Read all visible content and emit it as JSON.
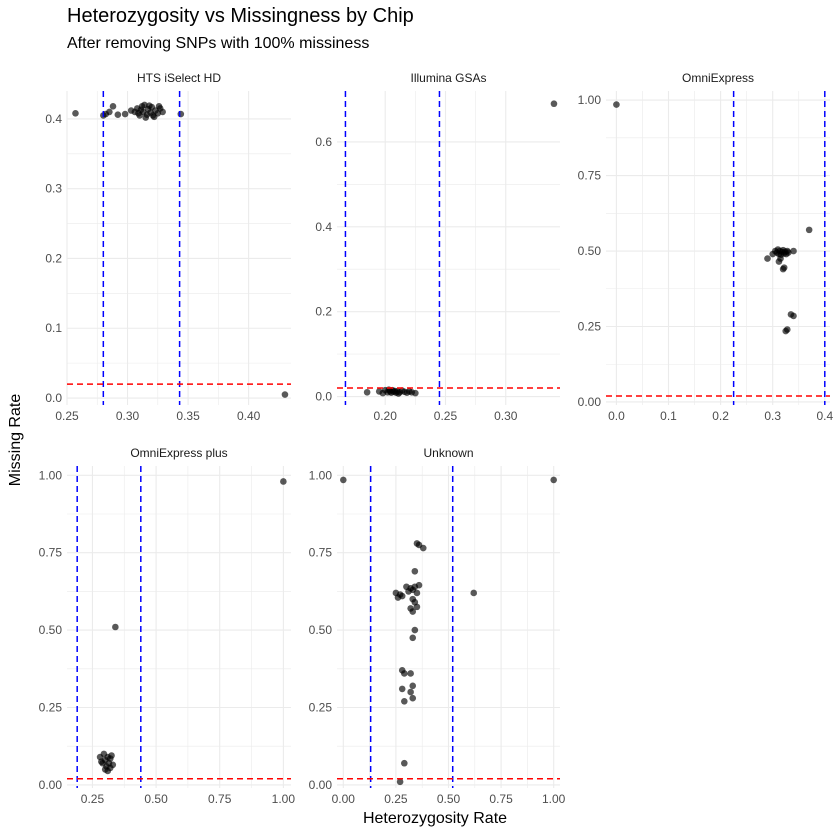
{
  "title": "Heterozygosity vs Missingness by Chip",
  "subtitle": "After removing SNPs with 100% missiness",
  "xlabel": "Heterozygosity Rate",
  "ylabel": "Missing Rate",
  "colors": {
    "point": "#000000",
    "vline": "#0000ff",
    "hline": "#ff0000",
    "grid": "#ebebeb"
  },
  "chart_data": [
    {
      "type": "scatter",
      "title": "HTS iSelect HD",
      "xlim": [
        0.25,
        0.435
      ],
      "ylim": [
        -0.01,
        0.44
      ],
      "xticks": [
        0.25,
        0.3,
        0.35,
        0.4
      ],
      "xtick_labels": [
        "0.25",
        "0.30",
        "0.35",
        "0.40"
      ],
      "yticks": [
        0.0,
        0.1,
        0.2,
        0.3,
        0.4
      ],
      "ytick_labels": [
        "0.0",
        "0.1",
        "0.2",
        "0.3",
        "0.4"
      ],
      "vlines": [
        0.28,
        0.343
      ],
      "hline": 0.02,
      "points": [
        [
          0.257,
          0.408
        ],
        [
          0.28,
          0.405
        ],
        [
          0.282,
          0.407
        ],
        [
          0.285,
          0.41
        ],
        [
          0.288,
          0.418
        ],
        [
          0.292,
          0.406
        ],
        [
          0.298,
          0.407
        ],
        [
          0.303,
          0.412
        ],
        [
          0.306,
          0.41
        ],
        [
          0.308,
          0.415
        ],
        [
          0.31,
          0.405
        ],
        [
          0.312,
          0.418
        ],
        [
          0.313,
          0.41
        ],
        [
          0.314,
          0.42
        ],
        [
          0.316,
          0.406
        ],
        [
          0.317,
          0.414
        ],
        [
          0.319,
          0.409
        ],
        [
          0.32,
          0.417
        ],
        [
          0.321,
          0.405
        ],
        [
          0.323,
          0.412
        ],
        [
          0.325,
          0.408
        ],
        [
          0.327,
          0.415
        ],
        [
          0.329,
          0.41
        ],
        [
          0.315,
          0.402
        ],
        [
          0.318,
          0.419
        ],
        [
          0.309,
          0.408
        ],
        [
          0.322,
          0.403
        ],
        [
          0.311,
          0.413
        ],
        [
          0.326,
          0.418
        ],
        [
          0.344,
          0.407
        ],
        [
          0.43,
          0.005
        ]
      ]
    },
    {
      "type": "scatter",
      "title": "Illumina GSAs",
      "xlim": [
        0.16,
        0.345
      ],
      "ylim": [
        -0.02,
        0.72
      ],
      "xticks": [
        0.2,
        0.25,
        0.3
      ],
      "xtick_labels": [
        "0.20",
        "0.25",
        "0.30"
      ],
      "yticks": [
        0.0,
        0.2,
        0.4,
        0.6
      ],
      "ytick_labels": [
        "0.0",
        "0.2",
        "0.4",
        "0.6"
      ],
      "vlines": [
        0.167,
        0.245
      ],
      "hline": 0.02,
      "points": [
        [
          0.185,
          0.01
        ],
        [
          0.195,
          0.012
        ],
        [
          0.198,
          0.008
        ],
        [
          0.2,
          0.015
        ],
        [
          0.202,
          0.01
        ],
        [
          0.204,
          0.012
        ],
        [
          0.205,
          0.009
        ],
        [
          0.206,
          0.015
        ],
        [
          0.207,
          0.011
        ],
        [
          0.208,
          0.013
        ],
        [
          0.209,
          0.009
        ],
        [
          0.21,
          0.012
        ],
        [
          0.212,
          0.01
        ],
        [
          0.214,
          0.014
        ],
        [
          0.216,
          0.011
        ],
        [
          0.218,
          0.009
        ],
        [
          0.22,
          0.012
        ],
        [
          0.222,
          0.01
        ],
        [
          0.203,
          0.016
        ],
        [
          0.211,
          0.007
        ],
        [
          0.225,
          0.008
        ],
        [
          0.34,
          0.69
        ]
      ]
    },
    {
      "type": "scatter",
      "title": "OmniExpress",
      "xlim": [
        -0.02,
        0.41
      ],
      "ylim": [
        -0.01,
        1.03
      ],
      "xticks": [
        0.0,
        0.1,
        0.2,
        0.3,
        0.4
      ],
      "xtick_labels": [
        "0.0",
        "0.1",
        "0.2",
        "0.3",
        "0.4"
      ],
      "yticks": [
        0.0,
        0.25,
        0.5,
        0.75,
        1.0
      ],
      "ytick_labels": [
        "0.00",
        "0.25",
        "0.50",
        "0.75",
        "1.00"
      ],
      "vlines": [
        0.225,
        0.4
      ],
      "hline": 0.02,
      "points": [
        [
          0.0,
          0.985
        ],
        [
          0.29,
          0.475
        ],
        [
          0.3,
          0.49
        ],
        [
          0.305,
          0.5
        ],
        [
          0.308,
          0.495
        ],
        [
          0.31,
          0.505
        ],
        [
          0.312,
          0.49
        ],
        [
          0.314,
          0.5
        ],
        [
          0.316,
          0.488
        ],
        [
          0.318,
          0.497
        ],
        [
          0.32,
          0.503
        ],
        [
          0.322,
          0.492
        ],
        [
          0.324,
          0.498
        ],
        [
          0.326,
          0.49
        ],
        [
          0.328,
          0.5
        ],
        [
          0.33,
          0.495
        ],
        [
          0.312,
          0.465
        ],
        [
          0.315,
          0.475
        ],
        [
          0.32,
          0.44
        ],
        [
          0.322,
          0.445
        ],
        [
          0.34,
          0.5
        ],
        [
          0.37,
          0.57
        ],
        [
          0.325,
          0.235
        ],
        [
          0.328,
          0.24
        ],
        [
          0.335,
          0.29
        ],
        [
          0.34,
          0.285
        ]
      ]
    },
    {
      "type": "scatter",
      "title": "OmniExpress plus",
      "xlim": [
        0.15,
        1.03
      ],
      "ylim": [
        -0.01,
        1.03
      ],
      "xticks": [
        0.25,
        0.5,
        0.75,
        1.0
      ],
      "xtick_labels": [
        "0.25",
        "0.50",
        "0.75",
        "1.00"
      ],
      "yticks": [
        0.0,
        0.25,
        0.5,
        0.75,
        1.0
      ],
      "ytick_labels": [
        "0.00",
        "0.25",
        "0.50",
        "0.75",
        "1.00"
      ],
      "vlines": [
        0.19,
        0.44
      ],
      "hline": 0.02,
      "points": [
        [
          0.28,
          0.09
        ],
        [
          0.29,
          0.07
        ],
        [
          0.295,
          0.1
        ],
        [
          0.3,
          0.08
        ],
        [
          0.305,
          0.06
        ],
        [
          0.31,
          0.09
        ],
        [
          0.315,
          0.07
        ],
        [
          0.32,
          0.085
        ],
        [
          0.325,
          0.095
        ],
        [
          0.33,
          0.065
        ],
        [
          0.3,
          0.05
        ],
        [
          0.31,
          0.045
        ],
        [
          0.285,
          0.075
        ],
        [
          0.32,
          0.055
        ],
        [
          0.34,
          0.51
        ],
        [
          1.0,
          0.98
        ]
      ]
    },
    {
      "type": "scatter",
      "title": "Unknown",
      "xlim": [
        -0.03,
        1.03
      ],
      "ylim": [
        -0.01,
        1.03
      ],
      "xticks": [
        0.0,
        0.25,
        0.5,
        0.75,
        1.0
      ],
      "xtick_labels": [
        "0.00",
        "0.25",
        "0.50",
        "0.75",
        "1.00"
      ],
      "yticks": [
        0.0,
        0.25,
        0.5,
        0.75,
        1.0
      ],
      "ytick_labels": [
        "0.00",
        "0.25",
        "0.50",
        "0.75",
        "1.00"
      ],
      "vlines": [
        0.13,
        0.52
      ],
      "hline": 0.02,
      "points": [
        [
          0.0,
          0.985
        ],
        [
          0.25,
          0.62
        ],
        [
          0.26,
          0.605
        ],
        [
          0.27,
          0.615
        ],
        [
          0.28,
          0.61
        ],
        [
          0.3,
          0.64
        ],
        [
          0.31,
          0.625
        ],
        [
          0.32,
          0.635
        ],
        [
          0.33,
          0.63
        ],
        [
          0.34,
          0.64
        ],
        [
          0.35,
          0.62
        ],
        [
          0.36,
          0.645
        ],
        [
          0.33,
          0.6
        ],
        [
          0.34,
          0.59
        ],
        [
          0.32,
          0.57
        ],
        [
          0.33,
          0.56
        ],
        [
          0.35,
          0.575
        ],
        [
          0.34,
          0.5
        ],
        [
          0.33,
          0.475
        ],
        [
          0.34,
          0.69
        ],
        [
          0.35,
          0.78
        ],
        [
          0.36,
          0.775
        ],
        [
          0.38,
          0.765
        ],
        [
          0.28,
          0.37
        ],
        [
          0.29,
          0.36
        ],
        [
          0.32,
          0.36
        ],
        [
          0.28,
          0.31
        ],
        [
          0.29,
          0.27
        ],
        [
          0.32,
          0.3
        ],
        [
          0.33,
          0.28
        ],
        [
          0.33,
          0.32
        ],
        [
          0.29,
          0.07
        ],
        [
          0.27,
          0.01
        ],
        [
          0.62,
          0.62
        ],
        [
          1.0,
          0.985
        ]
      ]
    }
  ]
}
